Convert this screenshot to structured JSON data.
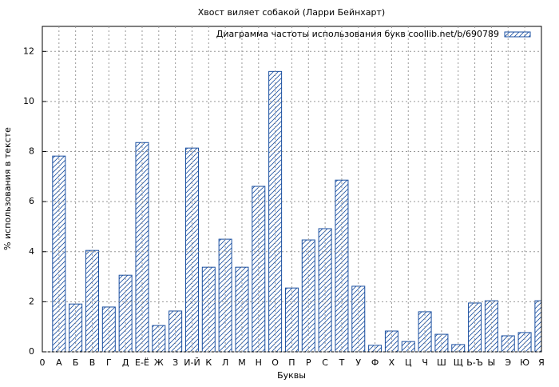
{
  "chart_data": {
    "type": "bar",
    "title": "Хвост виляет собакой (Ларри Бейнхарт)",
    "xlabel": "Буквы",
    "ylabel": "% использования в тексте",
    "categories": [
      "0",
      "А",
      "Б",
      "В",
      "Г",
      "Д",
      "Е-Ё",
      "Ж",
      "З",
      "И-Й",
      "К",
      "Л",
      "М",
      "Н",
      "О",
      "П",
      "Р",
      "С",
      "Т",
      "У",
      "Ф",
      "Х",
      "Ц",
      "Ч",
      "Ш",
      "Щ",
      "Ь-Ъ",
      "Ы",
      "Э",
      "Ю",
      "Я"
    ],
    "series": [
      {
        "name": "Диаграмма частоты использования букв coollib.net/b/690789",
        "color": "#1a4fa0",
        "values": [
          null,
          7.82,
          1.91,
          4.05,
          1.79,
          3.06,
          8.36,
          1.05,
          1.63,
          8.14,
          3.38,
          4.5,
          3.38,
          6.61,
          11.2,
          2.55,
          4.47,
          4.92,
          6.86,
          2.62,
          0.26,
          0.83,
          0.41,
          1.6,
          0.7,
          0.29,
          1.95,
          2.04,
          0.64,
          0.77,
          2.04
        ]
      }
    ],
    "ylim": [
      0,
      13
    ],
    "yticks": [
      0,
      2,
      4,
      6,
      8,
      10,
      12
    ],
    "grid": true,
    "legend": "top-right"
  }
}
